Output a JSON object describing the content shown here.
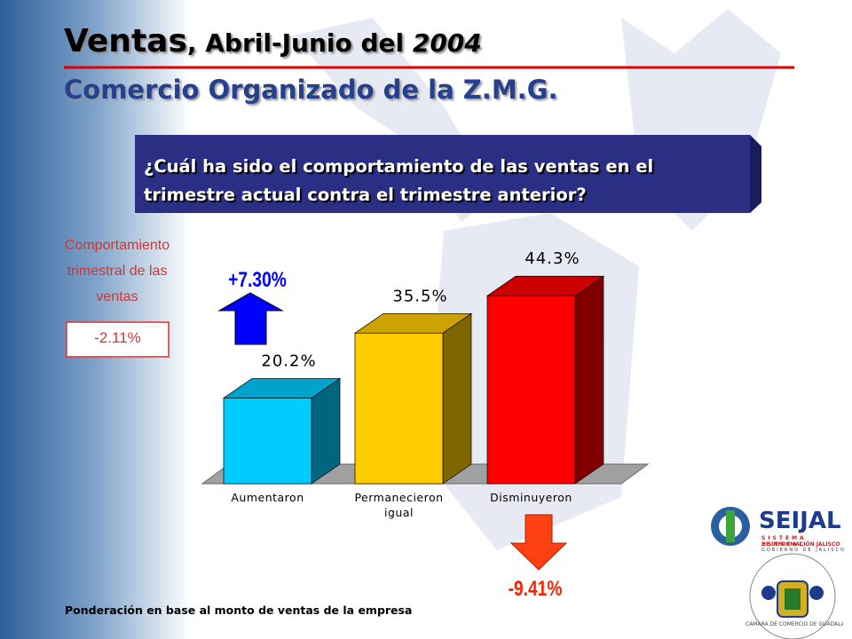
{
  "chart_data": {
    "type": "bar3d",
    "title": [
      "Ventas",
      ", Abril-Junio del ",
      "2004"
    ],
    "subtitle": "Comercio Organizado de la Z.M.G.",
    "question": "¿Cuál ha sido el comportamiento de las ventas en el trimestre actual contra el trimestre anterior?",
    "side_label": "Comportamiento trimestral de las ventas",
    "side_value": "-2.11%",
    "annotations": [
      "+7.30%",
      "-9.41%"
    ],
    "categories": [
      "Aumentaron",
      "Permanecieron igual",
      "Disminuyeron"
    ],
    "values": [
      20.2,
      35.5,
      44.3
    ],
    "value_labels": [
      "20.2%",
      "35.5%",
      "44.3%"
    ],
    "colors": [
      "#00ccff",
      "#ffcc00",
      "#ff0000"
    ],
    "footnote": "Ponderación en base al monto de ventas de la empresa",
    "logos": {
      "seijal": "SEIJAL",
      "seijal_sub": [
        "SISTEMA ESTATAL",
        "DE INFORMACIÓN JALISCO",
        "GOBIERNO DE JALISCO"
      ],
      "camara": "CAMARA DE COMERCIO DE GUADALAJARA"
    }
  }
}
